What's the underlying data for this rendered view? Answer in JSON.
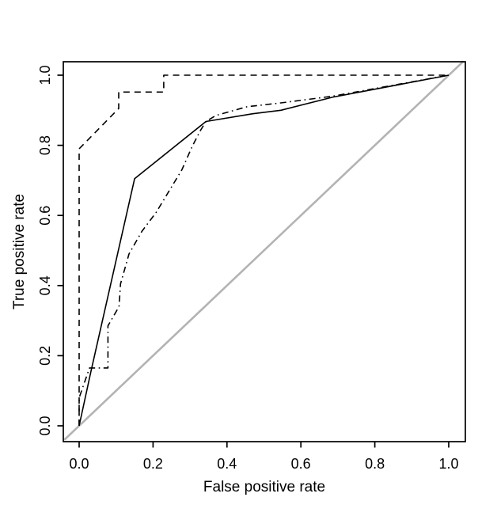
{
  "figure": {
    "background": "#ffffff",
    "line_color": "#000000",
    "reference_line_color": "#b3b3b3",
    "text_color": "#000000"
  },
  "chart_data": {
    "type": "line",
    "title": "",
    "xlabel": "False positive rate",
    "ylabel": "True positive rate",
    "xlim": [
      0,
      1
    ],
    "ylim": [
      0,
      1
    ],
    "grid": false,
    "legend": "none",
    "x_ticks": [
      0.0,
      0.2,
      0.4,
      0.6,
      0.8,
      1.0
    ],
    "x_tick_labels": [
      "0.0",
      "0.2",
      "0.4",
      "0.6",
      "0.8",
      "1.0"
    ],
    "y_ticks": [
      0.0,
      0.2,
      0.4,
      0.6,
      0.8,
      1.0
    ],
    "y_tick_labels": [
      "0.0",
      "0.2",
      "0.4",
      "0.6",
      "0.8",
      "1.0"
    ],
    "y_tick_labels_rotated": true,
    "series": [
      {
        "name": "chance-diagonal",
        "style": "solid",
        "color": "#b3b3b3",
        "width": 2.6,
        "points": [
          [
            -0.04,
            -0.04
          ],
          [
            1.04,
            1.04
          ]
        ]
      },
      {
        "name": "roc-curve-dashed",
        "style": "dashed",
        "color": "#000000",
        "width": 1.6,
        "points": [
          [
            0,
            0
          ],
          [
            0,
            0.79
          ],
          [
            0.107,
            0.905
          ],
          [
            0.107,
            0.952
          ],
          [
            0.229,
            0.952
          ],
          [
            0.229,
            1.0
          ],
          [
            1.0,
            1.0
          ]
        ]
      },
      {
        "name": "roc-curve-solid",
        "style": "solid",
        "color": "#000000",
        "width": 1.6,
        "points": [
          [
            0,
            0
          ],
          [
            0.032,
            0.155
          ],
          [
            0.15,
            0.705
          ],
          [
            0.343,
            0.868
          ],
          [
            0.47,
            0.89
          ],
          [
            0.546,
            0.9
          ],
          [
            0.685,
            0.937
          ],
          [
            1.0,
            1.0
          ]
        ]
      },
      {
        "name": "roc-curve-dashdot",
        "style": "dashdot",
        "color": "#000000",
        "width": 1.6,
        "points": [
          [
            0,
            0
          ],
          [
            0,
            0.08
          ],
          [
            0.028,
            0.165
          ],
          [
            0.078,
            0.165
          ],
          [
            0.078,
            0.285
          ],
          [
            0.108,
            0.34
          ],
          [
            0.112,
            0.405
          ],
          [
            0.135,
            0.49
          ],
          [
            0.17,
            0.555
          ],
          [
            0.208,
            0.608
          ],
          [
            0.243,
            0.669
          ],
          [
            0.278,
            0.73
          ],
          [
            0.306,
            0.797
          ],
          [
            0.328,
            0.842
          ],
          [
            0.343,
            0.868
          ],
          [
            0.37,
            0.885
          ],
          [
            0.454,
            0.91
          ],
          [
            0.546,
            0.921
          ],
          [
            0.685,
            0.94
          ],
          [
            1.0,
            1.0
          ]
        ]
      }
    ]
  }
}
